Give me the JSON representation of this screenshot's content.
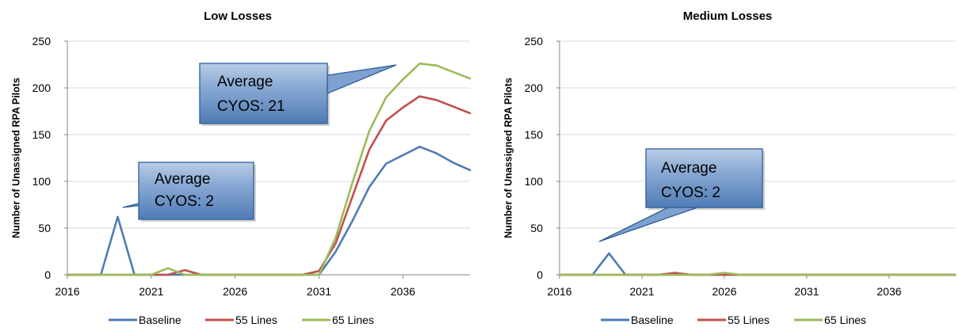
{
  "colors": {
    "baseline": "#4f7bb5",
    "lines55": "#c0504d",
    "lines65": "#9bbb59",
    "grid": "#d9d9d9",
    "axis": "#868686",
    "callout_fill": "#5b87c2",
    "callout_border": "#2e5f98"
  },
  "legend": {
    "position": "bottom",
    "items": [
      {
        "label": "Baseline",
        "color": "#4f7bb5"
      },
      {
        "label": "55 Lines",
        "color": "#c0504d"
      },
      {
        "label": "65 Lines",
        "color": "#9bbb59"
      }
    ]
  },
  "chart_data": [
    {
      "type": "line",
      "title": "Low Losses",
      "xlabel": "",
      "ylabel": "Number of Unassigned RPA Pilots",
      "ylim": [
        0,
        250
      ],
      "yticks": [
        0,
        50,
        100,
        150,
        200,
        250
      ],
      "xlim": [
        2016,
        2040
      ],
      "xticks": [
        2016,
        2021,
        2026,
        2031,
        2036
      ],
      "grid": "horizontal",
      "x": [
        2016,
        2017,
        2018,
        2019,
        2020,
        2021,
        2022,
        2023,
        2024,
        2025,
        2026,
        2027,
        2028,
        2029,
        2030,
        2031,
        2032,
        2033,
        2034,
        2035,
        2036,
        2037,
        2038,
        2039,
        2040
      ],
      "series": [
        {
          "name": "Baseline",
          "values": [
            0,
            0,
            0,
            62,
            0,
            0,
            0,
            0,
            0,
            0,
            0,
            0,
            0,
            0,
            0,
            0,
            25,
            58,
            94,
            119,
            128,
            137,
            130,
            120,
            112
          ]
        },
        {
          "name": "55 Lines",
          "values": [
            0,
            0,
            0,
            0,
            0,
            0,
            0,
            5,
            0,
            0,
            0,
            0,
            0,
            0,
            0,
            4,
            34,
            84,
            134,
            165,
            179,
            191,
            187,
            180,
            173
          ]
        },
        {
          "name": "65 Lines",
          "values": [
            0,
            0,
            0,
            0,
            0,
            0,
            7,
            0,
            0,
            0,
            0,
            0,
            0,
            0,
            0,
            0,
            40,
            99,
            154,
            190,
            209,
            226,
            224,
            217,
            210
          ]
        }
      ],
      "annotations": [
        {
          "text_lines": [
            "Average",
            "CYOS: 2"
          ]
        },
        {
          "text_lines": [
            "Average",
            "CYOS: 21"
          ]
        }
      ]
    },
    {
      "type": "line",
      "title": "Medium Losses",
      "xlabel": "",
      "ylabel": "Number of Unassigned RPA Pilots",
      "ylim": [
        0,
        250
      ],
      "yticks": [
        0,
        50,
        100,
        150,
        200,
        250
      ],
      "xlim": [
        2016,
        2040
      ],
      "xticks": [
        2016,
        2021,
        2026,
        2031,
        2036
      ],
      "grid": "horizontal",
      "x": [
        2016,
        2017,
        2018,
        2019,
        2020,
        2021,
        2022,
        2023,
        2024,
        2025,
        2026,
        2027,
        2028,
        2029,
        2030,
        2031,
        2032,
        2033,
        2034,
        2035,
        2036,
        2037,
        2038,
        2039,
        2040
      ],
      "series": [
        {
          "name": "Baseline",
          "values": [
            0,
            0,
            0,
            23,
            0,
            0,
            0,
            0,
            0,
            0,
            0,
            0,
            0,
            0,
            0,
            0,
            0,
            0,
            0,
            0,
            0,
            0,
            0,
            0,
            0
          ]
        },
        {
          "name": "55 Lines",
          "values": [
            0,
            0,
            0,
            0,
            0,
            0,
            0,
            2,
            0,
            0,
            0,
            0,
            0,
            0,
            0,
            0,
            0,
            0,
            0,
            0,
            0,
            0,
            0,
            0,
            0
          ]
        },
        {
          "name": "65 Lines",
          "values": [
            0,
            0,
            0,
            0,
            0,
            0,
            0,
            0,
            0,
            0,
            2,
            0,
            0,
            0,
            0,
            0,
            0,
            0,
            0,
            0,
            0,
            0,
            0,
            0,
            0
          ]
        }
      ],
      "annotations": [
        {
          "text_lines": [
            "Average",
            "CYOS: 2"
          ]
        }
      ]
    }
  ]
}
